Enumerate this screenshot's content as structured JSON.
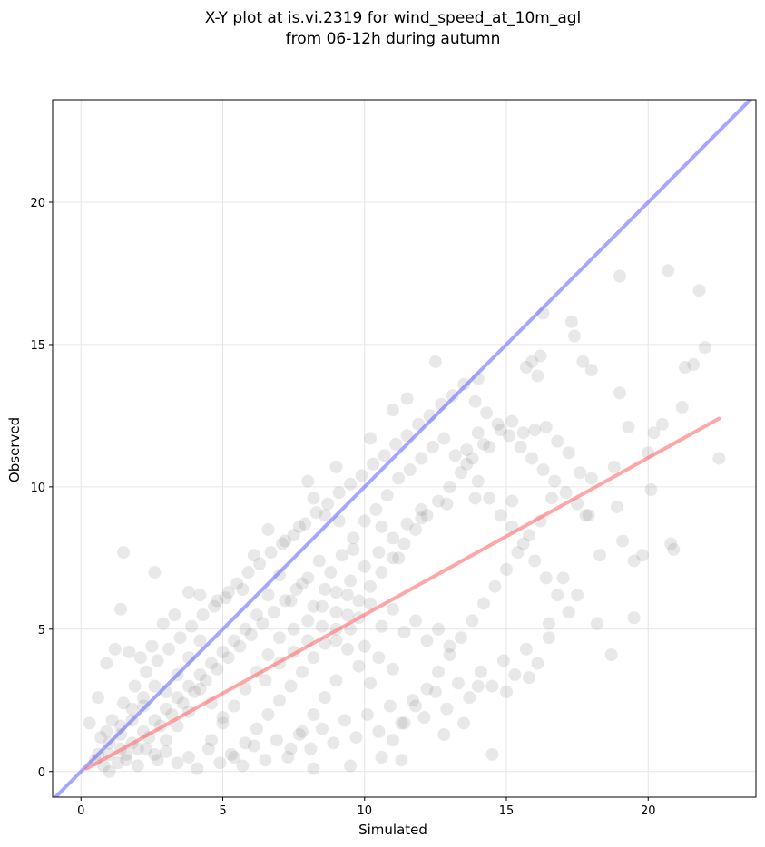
{
  "chart_data": {
    "type": "scatter",
    "title": "X-Y plot at is.vi.2319 for wind_speed_at_10m_agl",
    "subtitle": "from 06-12h during autumn",
    "xlabel": "Simulated",
    "ylabel": "Observed",
    "xlim": [
      -1.0,
      23.8
    ],
    "ylim": [
      -0.9,
      23.6
    ],
    "x_ticks": [
      0,
      5,
      10,
      15,
      20
    ],
    "y_ticks": [
      0,
      5,
      10,
      15,
      20
    ],
    "x_tick_labels": [
      "0",
      "5",
      "10",
      "15",
      "20"
    ],
    "y_tick_labels": [
      "0",
      "5",
      "10",
      "15",
      "20"
    ],
    "grid": true,
    "point_color": "#808080",
    "point_alpha": 0.18,
    "identity_line": {
      "color": "#6b6bff",
      "x": [
        -1.0,
        23.8
      ],
      "y": [
        -1.0,
        23.8
      ]
    },
    "regression_line": {
      "color": "#ff6b6b",
      "x": [
        0.2,
        22.5
      ],
      "y": [
        0.1,
        12.4
      ]
    },
    "points": [
      [
        1.5,
        7.7
      ],
      [
        2.6,
        7.0
      ],
      [
        1.4,
        5.7
      ],
      [
        8.0,
        10.2
      ],
      [
        9.0,
        10.7
      ],
      [
        10.2,
        11.7
      ],
      [
        11.0,
        12.7
      ],
      [
        11.5,
        13.1
      ],
      [
        12.5,
        14.4
      ],
      [
        14.0,
        13.8
      ],
      [
        19.0,
        17.4
      ],
      [
        20.7,
        17.6
      ],
      [
        21.8,
        16.9
      ],
      [
        16.3,
        16.1
      ],
      [
        17.3,
        15.8
      ],
      [
        17.4,
        15.3
      ],
      [
        15.9,
        14.4
      ],
      [
        16.2,
        14.6
      ],
      [
        15.7,
        14.2
      ],
      [
        16.1,
        13.9
      ],
      [
        17.7,
        14.4
      ],
      [
        18.0,
        14.1
      ],
      [
        21.3,
        14.2
      ],
      [
        21.6,
        14.3
      ],
      [
        22.0,
        14.9
      ],
      [
        21.2,
        12.8
      ],
      [
        20.2,
        11.9
      ],
      [
        20.0,
        11.2
      ],
      [
        20.1,
        9.9
      ],
      [
        19.5,
        7.4
      ],
      [
        19.8,
        7.6
      ],
      [
        18.9,
        9.3
      ],
      [
        20.8,
        8.0
      ],
      [
        20.9,
        7.8
      ],
      [
        18.7,
        4.1
      ],
      [
        19.5,
        5.4
      ],
      [
        18.2,
        5.2
      ],
      [
        22.5,
        11.0
      ],
      [
        20.5,
        12.2
      ],
      [
        19.0,
        13.3
      ],
      [
        14.5,
        0.6
      ],
      [
        8.2,
        0.1
      ],
      [
        11.3,
        0.4
      ],
      [
        9.5,
        0.2
      ],
      [
        12.8,
        1.3
      ],
      [
        13.5,
        1.7
      ],
      [
        14.0,
        3.0
      ],
      [
        15.0,
        2.8
      ],
      [
        15.8,
        3.3
      ],
      [
        16.5,
        5.2
      ],
      [
        17.0,
        6.8
      ],
      [
        17.5,
        6.2
      ],
      [
        18.3,
        7.6
      ],
      [
        19.1,
        8.1
      ],
      [
        17.8,
        9.0
      ],
      [
        18.8,
        10.7
      ],
      [
        19.3,
        12.1
      ],
      [
        15.2,
        9.5
      ],
      [
        13.9,
        9.6
      ],
      [
        12.9,
        9.4
      ],
      [
        12.0,
        8.9
      ],
      [
        11.2,
        7.5
      ],
      [
        10.6,
        8.6
      ],
      [
        9.6,
        7.8
      ],
      [
        9.1,
        8.8
      ],
      [
        8.6,
        9.0
      ],
      [
        8.2,
        9.6
      ],
      [
        7.7,
        8.6
      ],
      [
        7.2,
        8.1
      ],
      [
        6.6,
        8.5
      ],
      [
        6.1,
        7.6
      ],
      [
        5.7,
        6.4
      ],
      [
        5.2,
        6.3
      ],
      [
        4.8,
        6.0
      ],
      [
        4.2,
        6.2
      ],
      [
        3.8,
        6.3
      ],
      [
        3.3,
        5.5
      ],
      [
        2.9,
        5.2
      ],
      [
        2.5,
        4.4
      ],
      [
        2.1,
        4.0
      ],
      [
        1.7,
        4.2
      ],
      [
        1.2,
        4.3
      ],
      [
        0.9,
        3.8
      ],
      [
        0.6,
        2.6
      ],
      [
        0.3,
        1.7
      ],
      [
        0.5,
        0.4
      ],
      [
        0.8,
        0.2
      ],
      [
        1.0,
        0.0
      ],
      [
        1.3,
        0.3
      ],
      [
        1.6,
        0.6
      ],
      [
        2.0,
        0.2
      ],
      [
        2.3,
        0.8
      ],
      [
        2.7,
        0.4
      ],
      [
        3.0,
        0.7
      ],
      [
        3.4,
        0.3
      ],
      [
        3.8,
        0.5
      ],
      [
        4.1,
        0.1
      ],
      [
        4.5,
        0.8
      ],
      [
        4.9,
        0.3
      ],
      [
        5.3,
        0.6
      ],
      [
        5.7,
        0.2
      ],
      [
        6.1,
        0.9
      ],
      [
        6.5,
        0.4
      ],
      [
        6.9,
        1.1
      ],
      [
        7.3,
        0.5
      ],
      [
        7.7,
        1.3
      ],
      [
        8.1,
        0.8
      ],
      [
        8.5,
        1.5
      ],
      [
        8.9,
        1.0
      ],
      [
        9.3,
        1.8
      ],
      [
        9.7,
        1.2
      ],
      [
        10.1,
        2.0
      ],
      [
        10.5,
        1.4
      ],
      [
        10.9,
        2.3
      ],
      [
        11.3,
        1.7
      ],
      [
        11.7,
        2.5
      ],
      [
        12.1,
        1.9
      ],
      [
        12.5,
        2.8
      ],
      [
        12.9,
        2.2
      ],
      [
        13.3,
        3.1
      ],
      [
        13.7,
        2.6
      ],
      [
        14.1,
        3.5
      ],
      [
        14.5,
        3.0
      ],
      [
        14.9,
        3.9
      ],
      [
        15.3,
        3.4
      ],
      [
        15.7,
        4.3
      ],
      [
        16.1,
        3.8
      ],
      [
        16.5,
        4.7
      ],
      [
        13.0,
        4.4
      ],
      [
        12.6,
        5.0
      ],
      [
        12.2,
        4.6
      ],
      [
        11.8,
        5.3
      ],
      [
        11.4,
        4.9
      ],
      [
        11.0,
        5.7
      ],
      [
        10.6,
        5.1
      ],
      [
        10.2,
        5.9
      ],
      [
        9.8,
        5.4
      ],
      [
        9.4,
        6.2
      ],
      [
        9.0,
        5.6
      ],
      [
        8.6,
        6.4
      ],
      [
        8.2,
        5.8
      ],
      [
        7.8,
        6.6
      ],
      [
        7.4,
        6.0
      ],
      [
        7.0,
        6.9
      ],
      [
        6.6,
        6.2
      ],
      [
        6.2,
        5.5
      ],
      [
        5.8,
        5.0
      ],
      [
        5.4,
        4.6
      ],
      [
        5.0,
        4.2
      ],
      [
        4.6,
        3.8
      ],
      [
        4.2,
        3.4
      ],
      [
        3.8,
        3.0
      ],
      [
        3.4,
        2.6
      ],
      [
        3.0,
        2.2
      ],
      [
        2.6,
        1.8
      ],
      [
        2.2,
        1.4
      ],
      [
        1.8,
        1.0
      ],
      [
        1.4,
        0.8
      ],
      [
        1.0,
        0.6
      ],
      [
        0.7,
        1.2
      ],
      [
        1.1,
        1.8
      ],
      [
        1.5,
        2.4
      ],
      [
        1.9,
        3.0
      ],
      [
        2.3,
        3.5
      ],
      [
        2.7,
        3.9
      ],
      [
        3.1,
        4.3
      ],
      [
        3.5,
        4.7
      ],
      [
        3.9,
        5.1
      ],
      [
        4.3,
        5.5
      ],
      [
        4.7,
        5.8
      ],
      [
        5.1,
        6.1
      ],
      [
        5.5,
        6.6
      ],
      [
        5.9,
        7.0
      ],
      [
        6.3,
        7.3
      ],
      [
        6.7,
        7.7
      ],
      [
        7.1,
        8.0
      ],
      [
        7.5,
        8.3
      ],
      [
        7.9,
        8.7
      ],
      [
        8.3,
        9.1
      ],
      [
        8.7,
        9.4
      ],
      [
        9.1,
        9.8
      ],
      [
        9.5,
        10.1
      ],
      [
        9.9,
        10.4
      ],
      [
        10.3,
        10.8
      ],
      [
        10.7,
        11.1
      ],
      [
        11.1,
        11.5
      ],
      [
        11.5,
        11.8
      ],
      [
        11.9,
        12.2
      ],
      [
        12.3,
        12.5
      ],
      [
        12.7,
        12.9
      ],
      [
        13.1,
        13.2
      ],
      [
        13.5,
        13.6
      ],
      [
        13.9,
        13.0
      ],
      [
        14.3,
        12.6
      ],
      [
        14.7,
        12.2
      ],
      [
        15.1,
        11.8
      ],
      [
        15.5,
        11.4
      ],
      [
        15.9,
        11.0
      ],
      [
        16.3,
        10.6
      ],
      [
        16.7,
        10.2
      ],
      [
        17.1,
        9.8
      ],
      [
        17.5,
        9.4
      ],
      [
        17.9,
        9.0
      ],
      [
        14.2,
        11.5
      ],
      [
        13.8,
        11.0
      ],
      [
        13.4,
        10.5
      ],
      [
        13.0,
        10.0
      ],
      [
        12.6,
        9.5
      ],
      [
        12.2,
        9.0
      ],
      [
        11.8,
        8.5
      ],
      [
        11.4,
        8.0
      ],
      [
        11.0,
        7.5
      ],
      [
        10.6,
        7.0
      ],
      [
        10.2,
        6.5
      ],
      [
        9.8,
        6.0
      ],
      [
        9.4,
        5.5
      ],
      [
        9.0,
        5.0
      ],
      [
        8.6,
        4.5
      ],
      [
        8.2,
        4.0
      ],
      [
        7.8,
        3.5
      ],
      [
        7.4,
        3.0
      ],
      [
        7.0,
        2.5
      ],
      [
        6.6,
        2.0
      ],
      [
        6.2,
        1.5
      ],
      [
        5.8,
        1.0
      ],
      [
        5.4,
        0.5
      ],
      [
        5.0,
        1.9
      ],
      [
        4.6,
        2.4
      ],
      [
        4.2,
        2.9
      ],
      [
        3.8,
        2.1
      ],
      [
        3.4,
        1.6
      ],
      [
        3.0,
        1.1
      ],
      [
        2.6,
        0.6
      ],
      [
        2.2,
        2.3
      ],
      [
        1.8,
        1.8
      ],
      [
        1.4,
        1.3
      ],
      [
        16.0,
        12.0
      ],
      [
        16.4,
        12.1
      ],
      [
        15.6,
        11.9
      ],
      [
        15.2,
        12.3
      ],
      [
        14.8,
        12.0
      ],
      [
        14.4,
        11.4
      ],
      [
        14.0,
        11.9
      ],
      [
        13.6,
        11.3
      ],
      [
        16.8,
        11.6
      ],
      [
        17.2,
        11.2
      ],
      [
        17.6,
        10.5
      ],
      [
        18.0,
        10.3
      ],
      [
        16.6,
        9.6
      ],
      [
        16.2,
        8.8
      ],
      [
        15.8,
        8.3
      ],
      [
        15.4,
        7.7
      ],
      [
        15.0,
        7.1
      ],
      [
        14.6,
        6.5
      ],
      [
        14.2,
        5.9
      ],
      [
        13.8,
        5.3
      ],
      [
        13.4,
        4.7
      ],
      [
        13.0,
        4.1
      ],
      [
        12.6,
        3.5
      ],
      [
        12.2,
        2.9
      ],
      [
        11.8,
        2.3
      ],
      [
        11.4,
        1.7
      ],
      [
        11.0,
        1.1
      ],
      [
        10.6,
        0.5
      ],
      [
        10.2,
        3.1
      ],
      [
        9.8,
        3.7
      ],
      [
        9.4,
        4.3
      ],
      [
        9.0,
        3.2
      ],
      [
        8.6,
        2.6
      ],
      [
        8.2,
        2.0
      ],
      [
        7.8,
        1.4
      ],
      [
        7.4,
        0.8
      ],
      [
        7.0,
        4.7
      ],
      [
        6.6,
        4.1
      ],
      [
        6.2,
        3.5
      ],
      [
        5.8,
        2.9
      ],
      [
        5.4,
        2.3
      ],
      [
        5.0,
        1.7
      ],
      [
        4.6,
        1.1
      ],
      [
        4.2,
        4.6
      ],
      [
        3.8,
        4.0
      ],
      [
        3.4,
        3.4
      ],
      [
        3.0,
        2.8
      ],
      [
        2.6,
        3.0
      ],
      [
        2.2,
        2.6
      ],
      [
        1.8,
        2.2
      ],
      [
        1.4,
        1.6
      ],
      [
        1.0,
        1.0
      ],
      [
        0.6,
        0.6
      ],
      [
        0.9,
        1.4
      ],
      [
        8.4,
        7.4
      ],
      [
        8.8,
        7.0
      ],
      [
        9.2,
        7.6
      ],
      [
        9.6,
        8.2
      ],
      [
        10.0,
        8.8
      ],
      [
        10.4,
        9.2
      ],
      [
        10.8,
        9.7
      ],
      [
        11.2,
        10.3
      ],
      [
        11.6,
        10.6
      ],
      [
        12.0,
        11.0
      ],
      [
        12.4,
        11.4
      ],
      [
        12.8,
        11.7
      ],
      [
        13.2,
        11.1
      ],
      [
        13.6,
        10.8
      ],
      [
        14.0,
        10.2
      ],
      [
        14.4,
        9.6
      ],
      [
        14.8,
        9.0
      ],
      [
        15.2,
        8.6
      ],
      [
        15.6,
        8.0
      ],
      [
        16.0,
        7.4
      ],
      [
        16.4,
        6.8
      ],
      [
        16.8,
        6.2
      ],
      [
        17.2,
        5.6
      ],
      [
        6.0,
        4.8
      ],
      [
        6.4,
        5.2
      ],
      [
        6.8,
        5.6
      ],
      [
        7.2,
        6.0
      ],
      [
        7.6,
        6.4
      ],
      [
        8.0,
        6.8
      ],
      [
        5.6,
        4.4
      ],
      [
        5.2,
        4.0
      ],
      [
        4.8,
        3.6
      ],
      [
        4.4,
        3.2
      ],
      [
        4.0,
        2.8
      ],
      [
        3.6,
        2.4
      ],
      [
        3.2,
        2.0
      ],
      [
        2.8,
        1.6
      ],
      [
        2.4,
        1.2
      ],
      [
        2.0,
        0.8
      ],
      [
        1.6,
        0.4
      ],
      [
        7.5,
        5.0
      ],
      [
        8.0,
        5.3
      ],
      [
        8.5,
        5.8
      ],
      [
        9.0,
        6.3
      ],
      [
        9.5,
        6.7
      ],
      [
        10.0,
        7.2
      ],
      [
        10.5,
        7.7
      ],
      [
        11.0,
        8.2
      ],
      [
        11.5,
        8.7
      ],
      [
        12.0,
        9.2
      ],
      [
        6.5,
        3.2
      ],
      [
        7.0,
        3.8
      ],
      [
        7.5,
        4.2
      ],
      [
        8.0,
        4.6
      ],
      [
        8.5,
        5.1
      ],
      [
        9.0,
        4.6
      ],
      [
        9.5,
        5.0
      ],
      [
        10.0,
        4.4
      ],
      [
        10.5,
        4.0
      ],
      [
        11.0,
        3.6
      ]
    ]
  }
}
